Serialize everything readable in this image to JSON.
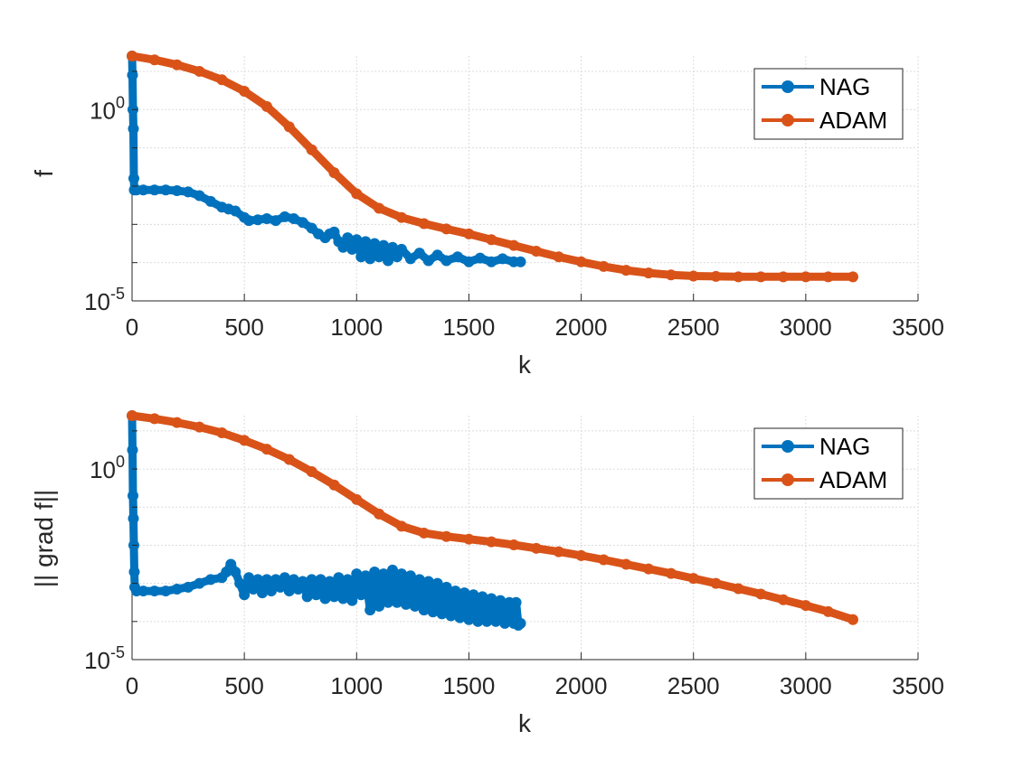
{
  "colors": {
    "NAG": "#0072BD",
    "ADAM": "#D95319"
  },
  "chart_data": [
    {
      "type": "line",
      "ylabel": "f",
      "xlabel": "k",
      "yscale": "log",
      "xlim": [
        0,
        3500
      ],
      "ylim_log10": [
        -5,
        1.4
      ],
      "grid": true,
      "legend": {
        "position": "top-right",
        "entries": [
          "NAG",
          "ADAM"
        ]
      },
      "x_ticks": [
        "0",
        "500",
        "1000",
        "1500",
        "2000",
        "2500",
        "3000",
        "3500"
      ],
      "y_ticks": [
        {
          "base": "10",
          "exp": "0",
          "log10": 0
        },
        {
          "base": "10",
          "exp": "-5",
          "log10": -5
        }
      ],
      "series": [
        {
          "name": "NAG",
          "color": "#0072BD",
          "x": [
            0,
            2,
            4,
            6,
            8,
            10,
            20,
            50,
            100,
            150,
            200,
            250,
            300,
            350,
            400,
            430,
            460,
            500,
            520,
            560,
            600,
            640,
            680,
            720,
            760,
            800,
            830,
            860,
            880,
            900,
            920,
            940,
            960,
            980,
            1000,
            1020,
            1040,
            1060,
            1080,
            1100,
            1120,
            1140,
            1160,
            1180,
            1200,
            1240,
            1280,
            1320,
            1360,
            1400,
            1450,
            1500,
            1550,
            1600,
            1650,
            1700,
            1730
          ],
          "log10y": [
            1.4,
            0.9,
            0.0,
            -0.5,
            -1.8,
            -2.1,
            -2.1,
            -2.1,
            -2.1,
            -2.1,
            -2.12,
            -2.15,
            -2.25,
            -2.4,
            -2.55,
            -2.6,
            -2.65,
            -2.82,
            -2.9,
            -2.88,
            -2.85,
            -2.9,
            -2.8,
            -2.85,
            -2.95,
            -3.1,
            -3.25,
            -3.35,
            -3.25,
            -3.2,
            -3.45,
            -3.6,
            -3.35,
            -3.65,
            -3.4,
            -3.85,
            -3.45,
            -3.9,
            -3.5,
            -3.85,
            -3.55,
            -3.95,
            -3.6,
            -3.85,
            -3.65,
            -3.9,
            -3.75,
            -3.95,
            -3.8,
            -3.95,
            -3.85,
            -3.98,
            -3.88,
            -3.98,
            -3.9,
            -3.98,
            -3.98
          ]
        },
        {
          "name": "ADAM",
          "color": "#D95319",
          "x": [
            0,
            100,
            200,
            300,
            400,
            500,
            600,
            700,
            800,
            900,
            1000,
            1100,
            1200,
            1300,
            1400,
            1500,
            1600,
            1700,
            1800,
            1900,
            2000,
            2100,
            2200,
            2300,
            2400,
            2500,
            2600,
            2700,
            2800,
            2900,
            3000,
            3100,
            3210
          ],
          "log10y": [
            1.4,
            1.3,
            1.17,
            1.0,
            0.78,
            0.48,
            0.08,
            -0.45,
            -1.05,
            -1.65,
            -2.2,
            -2.58,
            -2.82,
            -2.98,
            -3.12,
            -3.25,
            -3.4,
            -3.55,
            -3.7,
            -3.85,
            -3.98,
            -4.1,
            -4.2,
            -4.27,
            -4.32,
            -4.35,
            -4.36,
            -4.37,
            -4.37,
            -4.37,
            -4.37,
            -4.37,
            -4.37
          ]
        }
      ]
    },
    {
      "type": "line",
      "ylabel": "|| grad f||",
      "xlabel": "k",
      "yscale": "log",
      "xlim": [
        0,
        3500
      ],
      "ylim_log10": [
        -5,
        1.4
      ],
      "grid": true,
      "legend": {
        "position": "top-right",
        "entries": [
          "NAG",
          "ADAM"
        ]
      },
      "x_ticks": [
        "0",
        "500",
        "1000",
        "1500",
        "2000",
        "2500",
        "3000",
        "3500"
      ],
      "y_ticks": [
        {
          "base": "10",
          "exp": "0",
          "log10": 0
        },
        {
          "base": "10",
          "exp": "-5",
          "log10": -5
        }
      ],
      "series": [
        {
          "name": "NAG",
          "color": "#0072BD",
          "x": [
            0,
            2,
            4,
            6,
            8,
            10,
            12,
            20,
            50,
            100,
            150,
            200,
            250,
            300,
            350,
            400,
            420,
            440,
            460,
            480,
            500,
            520,
            540,
            560,
            580,
            600,
            620,
            640,
            660,
            680,
            700,
            720,
            740,
            760,
            780,
            800,
            820,
            840,
            860,
            880,
            900,
            920,
            940,
            960,
            980,
            1000,
            1020,
            1040,
            1060,
            1080,
            1100,
            1120,
            1140,
            1160,
            1180,
            1200,
            1220,
            1240,
            1260,
            1280,
            1300,
            1320,
            1340,
            1360,
            1380,
            1400,
            1420,
            1440,
            1460,
            1480,
            1500,
            1520,
            1540,
            1560,
            1580,
            1600,
            1620,
            1640,
            1660,
            1680,
            1700,
            1710,
            1720,
            1730
          ],
          "log10y": [
            1.4,
            0.5,
            -0.7,
            -1.3,
            -2.0,
            -2.7,
            -3.1,
            -3.2,
            -3.2,
            -3.2,
            -3.2,
            -3.15,
            -3.1,
            -3.0,
            -2.9,
            -2.85,
            -2.7,
            -2.5,
            -2.7,
            -3.0,
            -3.3,
            -2.85,
            -3.15,
            -2.9,
            -3.25,
            -2.9,
            -3.2,
            -2.9,
            -3.1,
            -2.85,
            -3.2,
            -2.9,
            -3.15,
            -2.95,
            -3.35,
            -2.9,
            -3.3,
            -2.9,
            -3.4,
            -2.95,
            -3.35,
            -2.85,
            -3.4,
            -2.9,
            -3.45,
            -2.75,
            -3.3,
            -2.8,
            -3.7,
            -2.7,
            -3.6,
            -2.75,
            -3.5,
            -2.65,
            -3.5,
            -2.75,
            -3.55,
            -2.8,
            -3.6,
            -2.9,
            -3.7,
            -2.95,
            -3.75,
            -3.0,
            -3.8,
            -3.1,
            -3.85,
            -3.2,
            -3.9,
            -3.25,
            -3.95,
            -3.3,
            -4.0,
            -3.35,
            -4.0,
            -3.4,
            -4.0,
            -3.45,
            -4.05,
            -3.5,
            -4.05,
            -3.5,
            -4.1,
            -4.05
          ]
        },
        {
          "name": "ADAM",
          "color": "#D95319",
          "x": [
            0,
            100,
            200,
            300,
            400,
            500,
            600,
            700,
            800,
            900,
            1000,
            1100,
            1200,
            1300,
            1400,
            1500,
            1600,
            1700,
            1800,
            1900,
            2000,
            2100,
            2200,
            2300,
            2400,
            2500,
            2600,
            2700,
            2800,
            2900,
            3000,
            3100,
            3210
          ],
          "log10y": [
            1.4,
            1.32,
            1.22,
            1.1,
            0.95,
            0.75,
            0.52,
            0.25,
            -0.07,
            -0.42,
            -0.8,
            -1.18,
            -1.5,
            -1.68,
            -1.77,
            -1.84,
            -1.91,
            -1.99,
            -2.08,
            -2.17,
            -2.27,
            -2.38,
            -2.5,
            -2.62,
            -2.74,
            -2.87,
            -3.0,
            -3.14,
            -3.28,
            -3.43,
            -3.58,
            -3.74,
            -3.95
          ]
        }
      ]
    }
  ]
}
